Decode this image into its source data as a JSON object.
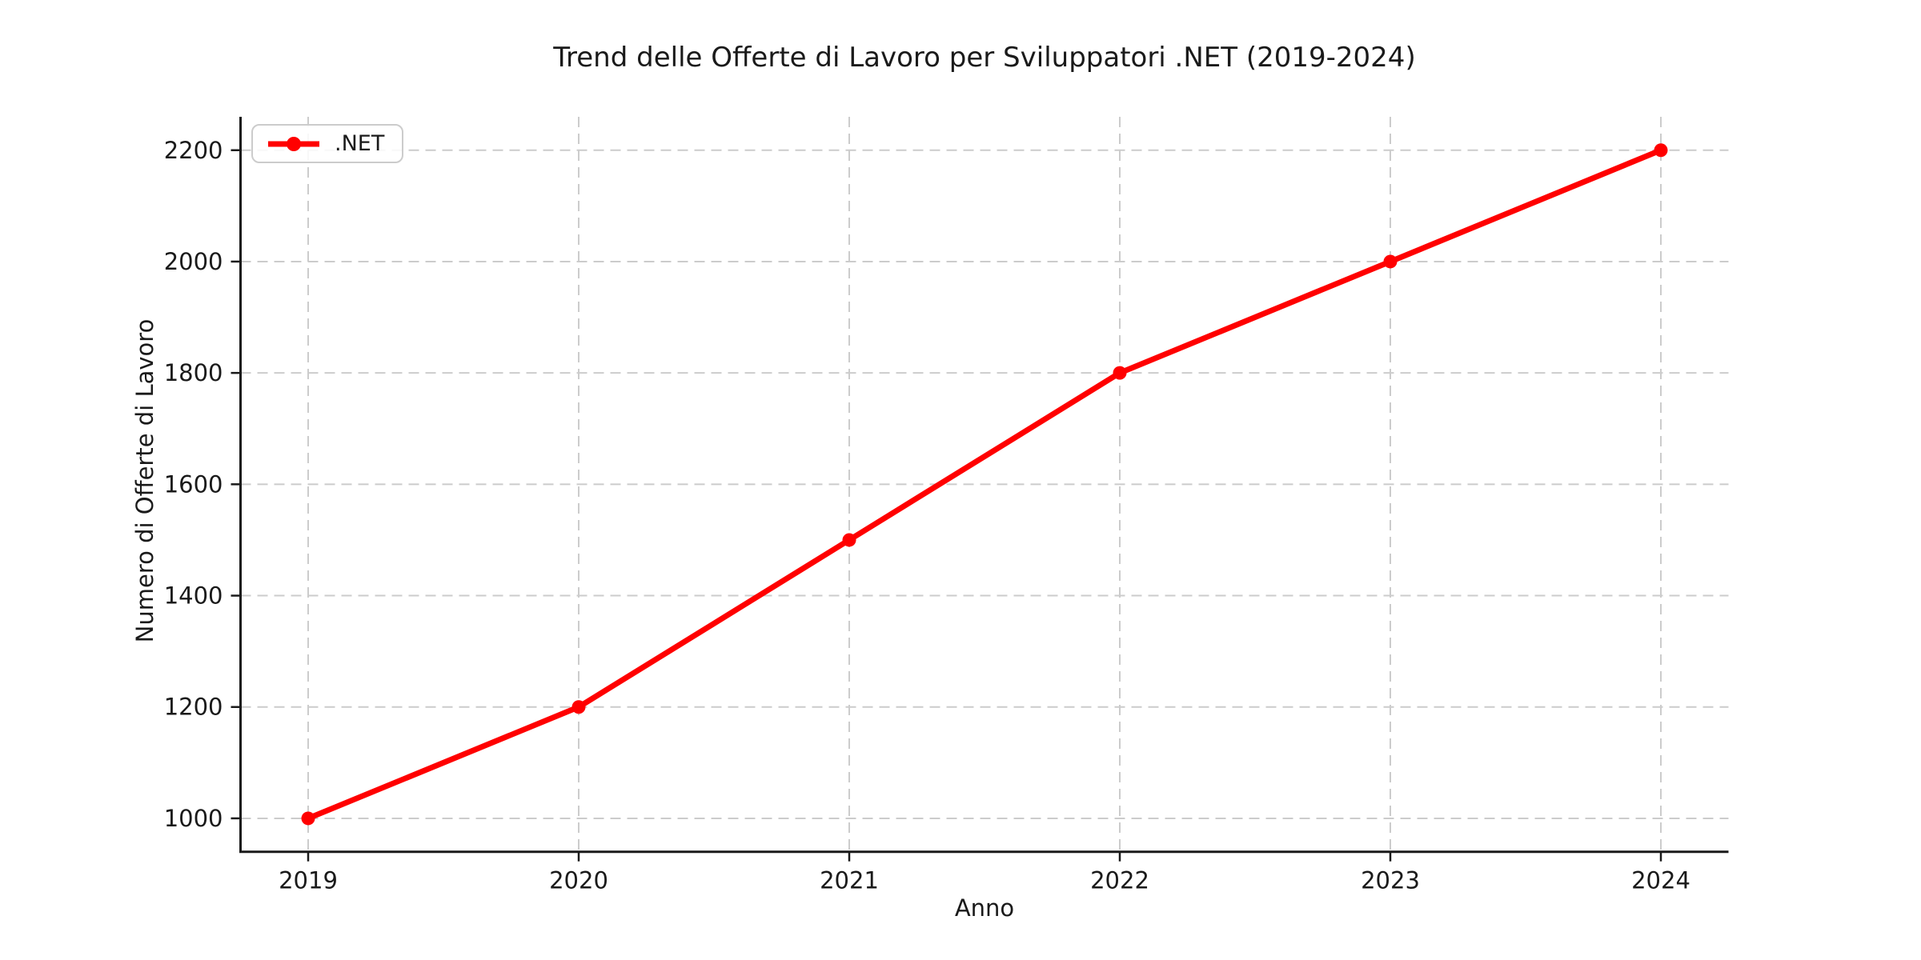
{
  "chart_data": {
    "type": "line",
    "title": "Trend delle Offerte di Lavoro per Sviluppatori .NET (2019-2024)",
    "xlabel": "Anno",
    "ylabel": "Numero di Offerte di Lavoro",
    "categories": [
      2019,
      2020,
      2021,
      2022,
      2023,
      2024
    ],
    "series": [
      {
        "name": ".NET",
        "values": [
          1000,
          1200,
          1500,
          1800,
          2000,
          2200
        ],
        "color": "#ff0000",
        "marker": "circle"
      }
    ],
    "yticks": [
      1000,
      1200,
      1400,
      1600,
      1800,
      2000,
      2200
    ],
    "xlim": [
      2018.75,
      2024.25
    ],
    "ylim": [
      940,
      2260
    ],
    "grid": true,
    "grid_style": "dashed",
    "legend_position": "upper-left",
    "colors": {
      "grid": "#cccccc",
      "spine": "#1a1a1a",
      "text": "#1a1a1a",
      "background": "#ffffff"
    }
  }
}
